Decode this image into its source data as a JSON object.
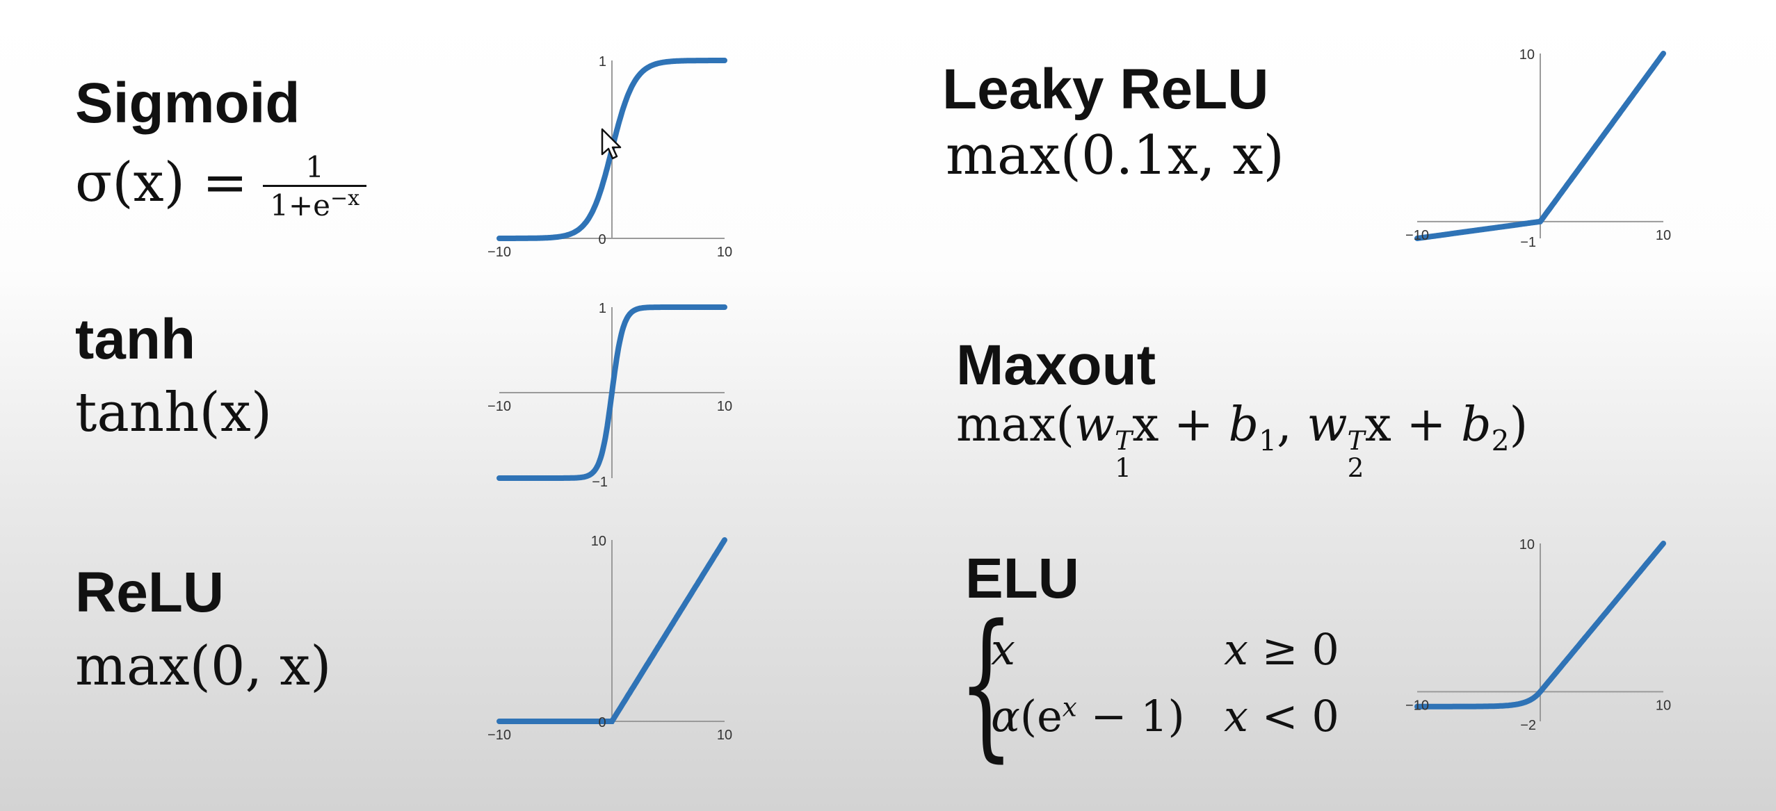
{
  "functions": [
    {
      "key": "sigmoid",
      "name": "Sigmoid",
      "formula": {
        "lhs": "σ(x) =",
        "num": "1",
        "den_base": "1+e",
        "den_exp": "−x"
      },
      "ticks": {
        "xmin": "−10",
        "xmax": "10",
        "origin": "0",
        "ytop": "1"
      }
    },
    {
      "key": "tanh",
      "name": "tanh",
      "formula": {
        "text": "tanh(x)"
      },
      "ticks": {
        "xmin": "−10",
        "xmax": "10",
        "ytop": "1",
        "ybottom": "−1"
      }
    },
    {
      "key": "relu",
      "name": "ReLU",
      "formula": {
        "text": "max(0, x)"
      },
      "ticks": {
        "xmin": "−10",
        "xmax": "10",
        "origin": "0",
        "ytop": "10"
      }
    },
    {
      "key": "leaky_relu",
      "name": "Leaky ReLU",
      "formula": {
        "text": "max(0.1x, x)"
      },
      "ticks": {
        "xmin": "−10",
        "xmax": "10",
        "ybottom": "−1",
        "ytop": "10"
      }
    },
    {
      "key": "maxout",
      "name": "Maxout",
      "formula": {
        "text": "max(w1Tx + b1, w2Tx + b2)"
      }
    },
    {
      "key": "elu",
      "name": "ELU",
      "formula": {
        "case1_expr": "x",
        "case1_cond": "x ≥ 0",
        "case2_expr": "α(e^x − 1)",
        "case2_cond": "x < 0"
      },
      "ticks": {
        "xmin": "−10",
        "xmax": "10",
        "ybottom": "−2",
        "ytop": "10"
      }
    }
  ],
  "chart_data": [
    {
      "type": "line",
      "series": [
        {
          "function": "sigmoid"
        }
      ],
      "xlim": [
        -10,
        10
      ],
      "ylim": [
        0,
        1
      ],
      "xticks": [
        -10,
        10
      ],
      "yticks": [
        0,
        1
      ],
      "color": "#2f73b6"
    },
    {
      "type": "line",
      "series": [
        {
          "function": "tanh"
        }
      ],
      "xlim": [
        -10,
        10
      ],
      "ylim": [
        -1,
        1
      ],
      "xticks": [
        -10,
        10
      ],
      "yticks": [
        -1,
        1
      ],
      "color": "#2f73b6"
    },
    {
      "type": "line",
      "series": [
        {
          "function": "relu"
        }
      ],
      "xlim": [
        -10,
        10
      ],
      "ylim": [
        0,
        10
      ],
      "xticks": [
        -10,
        10
      ],
      "yticks": [
        0,
        10
      ],
      "color": "#2f73b6"
    },
    {
      "type": "line",
      "series": [
        {
          "function": "leaky_relu",
          "alpha": 0.1
        }
      ],
      "xlim": [
        -10,
        10
      ],
      "ylim": [
        -1,
        10
      ],
      "xticks": [
        -10,
        10
      ],
      "yticks": [
        -1,
        10
      ],
      "color": "#2f73b6"
    },
    {
      "type": "line",
      "series": [
        {
          "function": "elu",
          "alpha": 1
        }
      ],
      "xlim": [
        -10,
        10
      ],
      "ylim": [
        -2,
        10
      ],
      "xticks": [
        -10,
        10
      ],
      "yticks": [
        -2,
        10
      ],
      "color": "#2f73b6"
    }
  ],
  "colors": {
    "curve": "#2f73b6",
    "axis": "#9a9a9a",
    "text": "#111111"
  },
  "icons": {
    "cursor": "mouse-pointer-icon"
  }
}
